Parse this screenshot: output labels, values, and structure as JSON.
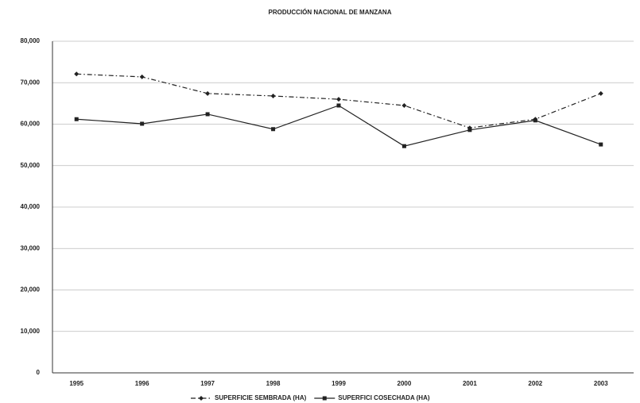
{
  "chart_data": {
    "type": "line",
    "title": "PRODUCCIÓN NACIONAL DE MANZANA",
    "categories": [
      "1995",
      "1996",
      "1997",
      "1998",
      "1999",
      "2000",
      "2001",
      "2002",
      "2003"
    ],
    "series": [
      {
        "name": "SUPERFICIE SEMBRADA (HA)",
        "color": "#222222",
        "dash": "dashdot",
        "marker": "diamond",
        "values": [
          72100,
          71400,
          67400,
          66800,
          66000,
          64500,
          59100,
          61200,
          67400
        ]
      },
      {
        "name": "SUPERFICI COSECHADA (HA)",
        "color": "#222222",
        "dash": "solid",
        "marker": "square",
        "values": [
          61200,
          60100,
          62400,
          58800,
          64500,
          54700,
          58600,
          60900,
          55100
        ]
      }
    ],
    "ylim": [
      0,
      80000
    ],
    "yticks": [
      {
        "value": 0,
        "label": "0"
      },
      {
        "value": 10000,
        "label": "10,000"
      },
      {
        "value": 20000,
        "label": "20,000"
      },
      {
        "value": 30000,
        "label": "30,000"
      },
      {
        "value": 40000,
        "label": "40,000"
      },
      {
        "value": 50000,
        "label": "50,000"
      },
      {
        "value": 60000,
        "label": "60,000"
      },
      {
        "value": 70000,
        "label": "70,000"
      },
      {
        "value": 80000,
        "label": "80,000"
      }
    ],
    "grid": true
  }
}
